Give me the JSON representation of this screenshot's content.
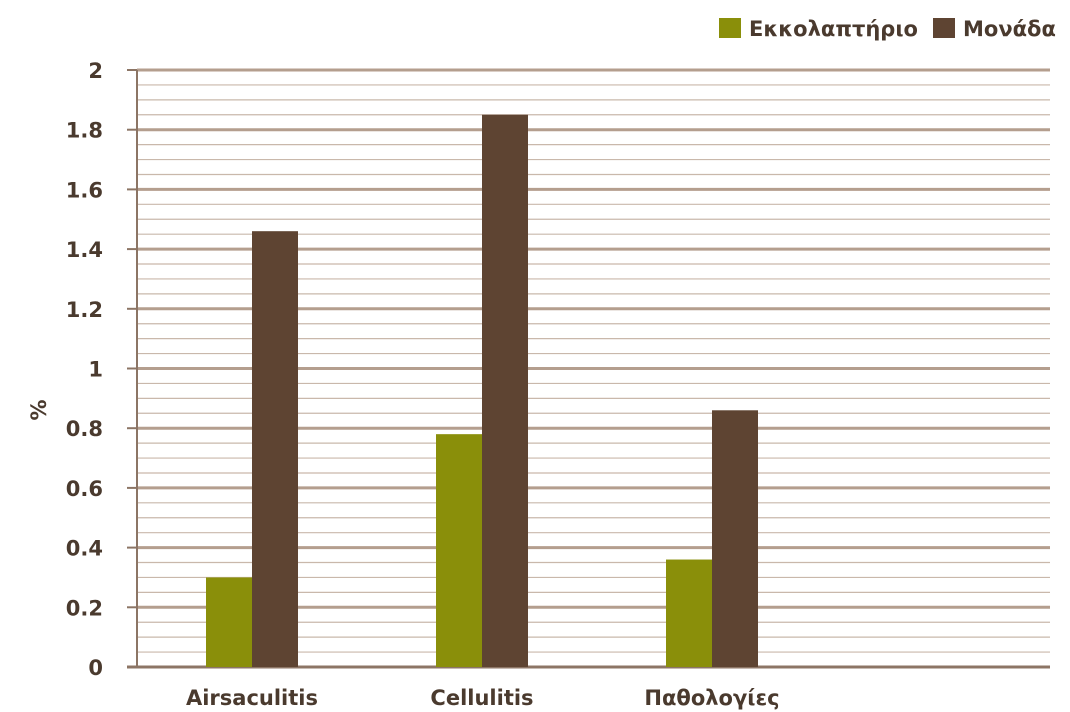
{
  "chart_data": {
    "type": "bar",
    "title": "",
    "xlabel": "",
    "ylabel": "%",
    "ylim": [
      0,
      2
    ],
    "yticks": [
      "0",
      "0.2",
      "0.4",
      "0.6",
      "0.8",
      "1",
      "1.2",
      "1.4",
      "1.6",
      "1.8",
      "2"
    ],
    "categories": [
      "Airsaculitis",
      "Cellulitis",
      "Παθολογίες"
    ],
    "series": [
      {
        "name": "Εκκολαπτήριο",
        "values": [
          0.3,
          0.78,
          0.36
        ]
      },
      {
        "name": "Μονάδα",
        "values": [
          1.46,
          1.85,
          0.86
        ]
      }
    ],
    "grid": true,
    "legend_position": "top-right",
    "colors": {
      "series": [
        "#8a8f0a",
        "#5e4432"
      ],
      "grid_major": "#b49e8e",
      "grid_minor": "#c9b8ab",
      "axis": "#8c7565",
      "text": "#4a3a2e"
    }
  }
}
